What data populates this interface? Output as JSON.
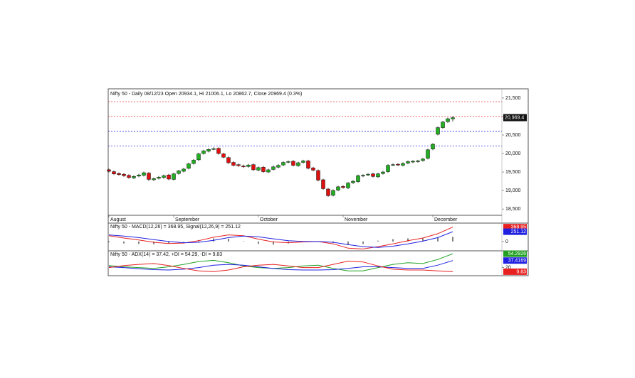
{
  "chart_data": [
    {
      "type": "candlestick",
      "title": "Nifty 50 - Daily 08/12/23 Open 20934.1, Hi 21006.1, Lo 20862.7, Close 20969.4 (0.3%)",
      "categories": [
        "August",
        null,
        null,
        null,
        null,
        null,
        null,
        null,
        null,
        null,
        null,
        null,
        null,
        "September",
        null,
        null,
        null,
        null,
        null,
        null,
        null,
        null,
        null,
        null,
        null,
        null,
        null,
        null,
        null,
        null,
        "October",
        null,
        null,
        null,
        null,
        null,
        null,
        null,
        null,
        null,
        null,
        null,
        null,
        null,
        null,
        null,
        null,
        "November",
        null,
        null,
        null,
        null,
        null,
        null,
        null,
        null,
        null,
        null,
        null,
        null,
        null,
        null,
        null,
        null,
        null,
        "December",
        null,
        null,
        null,
        null
      ],
      "open": [
        19560,
        19510,
        19460,
        19440,
        19410,
        19340,
        19390,
        19410,
        19470,
        19290,
        19330,
        19350,
        19420,
        19300,
        19460,
        19520,
        19600,
        19730,
        19830,
        20000,
        20060,
        20120,
        20140,
        19990,
        19890,
        19760,
        19700,
        19660,
        19650,
        19700,
        19550,
        19630,
        19500,
        19570,
        19630,
        19690,
        19770,
        19790,
        19670,
        19760,
        19800,
        19610,
        19540,
        19290,
        19040,
        18870,
        19010,
        19110,
        19070,
        19210,
        19240,
        19390,
        19420,
        19450,
        19370,
        19460,
        19510,
        19690,
        19710,
        19680,
        19740,
        19770,
        19780,
        19810,
        19870,
        20120,
        20520,
        20700,
        20860,
        20934.1
      ],
      "high": [
        19590,
        19540,
        19490,
        19470,
        19440,
        19410,
        19450,
        19510,
        19500,
        19350,
        19390,
        19430,
        19450,
        19480,
        19560,
        19610,
        19750,
        19850,
        20020,
        20100,
        20140,
        20170,
        20170,
        20020,
        19920,
        19790,
        19730,
        19700,
        19720,
        19730,
        19650,
        19660,
        19590,
        19670,
        19710,
        19790,
        19810,
        19820,
        19780,
        19830,
        19830,
        19640,
        19570,
        19320,
        19070,
        19030,
        19130,
        19140,
        19230,
        19280,
        19430,
        19440,
        19470,
        19480,
        19480,
        19530,
        19710,
        19730,
        19740,
        19760,
        19810,
        19820,
        19830,
        19880,
        20130,
        20280,
        20730,
        20880,
        20970,
        21006.1
      ],
      "low": [
        19490,
        19420,
        19400,
        19370,
        19320,
        19310,
        19360,
        19380,
        19260,
        19260,
        19300,
        19320,
        19280,
        19270,
        19430,
        19490,
        19570,
        19700,
        19800,
        19970,
        20030,
        20090,
        19970,
        19870,
        19720,
        19650,
        19640,
        19610,
        19620,
        19530,
        19520,
        19480,
        19470,
        19540,
        19600,
        19660,
        19740,
        19650,
        19640,
        19730,
        19570,
        19520,
        19250,
        19020,
        18830,
        18840,
        18980,
        19050,
        19040,
        19180,
        19210,
        19360,
        19390,
        19350,
        19340,
        19430,
        19480,
        19660,
        19660,
        19650,
        19710,
        19740,
        19750,
        19780,
        19840,
        20090,
        20490,
        20670,
        20830,
        20862.7
      ],
      "close": [
        19520,
        19450,
        19430,
        19400,
        19350,
        19380,
        19420,
        19480,
        19300,
        19320,
        19360,
        19400,
        19310,
        19450,
        19530,
        19580,
        19720,
        19820,
        19990,
        20070,
        20110,
        20130,
        20000,
        19900,
        19750,
        19680,
        19670,
        19640,
        19690,
        19560,
        19620,
        19510,
        19560,
        19640,
        19680,
        19760,
        19780,
        19680,
        19750,
        19800,
        19600,
        19550,
        19280,
        19050,
        18860,
        19000,
        19100,
        19080,
        19200,
        19250,
        19400,
        19410,
        19440,
        19380,
        19450,
        19500,
        19680,
        19700,
        19690,
        19730,
        19780,
        19790,
        19800,
        19850,
        20100,
        20250,
        20700,
        20850,
        20940,
        20969.4
      ],
      "up_color": "#22b022",
      "down_color": "#e01010",
      "last_label": "20,969.4",
      "ylim": [
        18330,
        21710
      ],
      "yticks": [
        {
          "value": 18500,
          "label": "18,500"
        },
        {
          "value": 19000,
          "label": "19,000"
        },
        {
          "value": 19500,
          "label": "19,500"
        },
        {
          "value": 20000,
          "label": "20,000"
        },
        {
          "value": 20500,
          "label": "20,500"
        },
        {
          "value": 21000,
          "label": "21,000"
        },
        {
          "value": 21500,
          "label": "21,500"
        }
      ],
      "levels": [
        {
          "value": 21400,
          "color": "#e83030"
        },
        {
          "value": 21000,
          "color": "#e83030"
        },
        {
          "value": 20600,
          "color": "#3030e0"
        },
        {
          "value": 20200,
          "color": "#3030e0"
        }
      ]
    },
    {
      "type": "line",
      "title": "Nifty 50 - MACD(12,26) = 368.95, Signal(12,26,9) = 251.12",
      "series": [
        {
          "color": "#e82020",
          "values": [
            150,
            90,
            40,
            -20,
            -50,
            -40,
            20,
            110,
            170,
            150,
            60,
            -10,
            -30,
            -10,
            0,
            -60,
            -170,
            -190,
            -130,
            -60,
            20,
            90,
            200,
            368.95
          ]
        },
        {
          "color": "#2020e0",
          "values": [
            170,
            140,
            100,
            50,
            0,
            -30,
            -20,
            30,
            100,
            140,
            120,
            70,
            20,
            0,
            0,
            -20,
            -80,
            -130,
            -150,
            -120,
            -60,
            10,
            100,
            251.12
          ]
        }
      ],
      "histogram": {
        "color": "#000000",
        "values": [
          -20,
          -50,
          -60,
          -70,
          -50,
          -10,
          40,
          80,
          70,
          10,
          -60,
          -80,
          -50,
          -10,
          0,
          -40,
          -90,
          -60,
          20,
          60,
          80,
          80,
          100,
          117.83
        ]
      },
      "ylim": [
        -220,
        435
      ],
      "yticks": [
        0
      ]
    },
    {
      "type": "line",
      "title": "Nifty 50 - ADX(14) = 37.42, +DI = 54.29, -DI = 9.83",
      "series": [
        {
          "color": "#22a022",
          "values": [
            25,
            22,
            20,
            18,
            22,
            28,
            35,
            38,
            32,
            24,
            20,
            18,
            20,
            24,
            26,
            18,
            12,
            12,
            20,
            28,
            32,
            30,
            40,
            54.2926
          ]
        },
        {
          "color": "#2020e0",
          "values": [
            22,
            20,
            17,
            15,
            14,
            16,
            20,
            26,
            28,
            26,
            22,
            18,
            15,
            14,
            14,
            15,
            18,
            22,
            22,
            20,
            18,
            18,
            26,
            37.4169
          ]
        },
        {
          "color": "#e82020",
          "values": [
            20,
            25,
            28,
            30,
            25,
            18,
            12,
            10,
            14,
            22,
            26,
            28,
            24,
            20,
            20,
            28,
            36,
            34,
            24,
            16,
            14,
            14,
            12,
            9.83
          ]
        }
      ],
      "ylim": [
        0,
        58
      ],
      "yticks": [
        20
      ]
    }
  ]
}
